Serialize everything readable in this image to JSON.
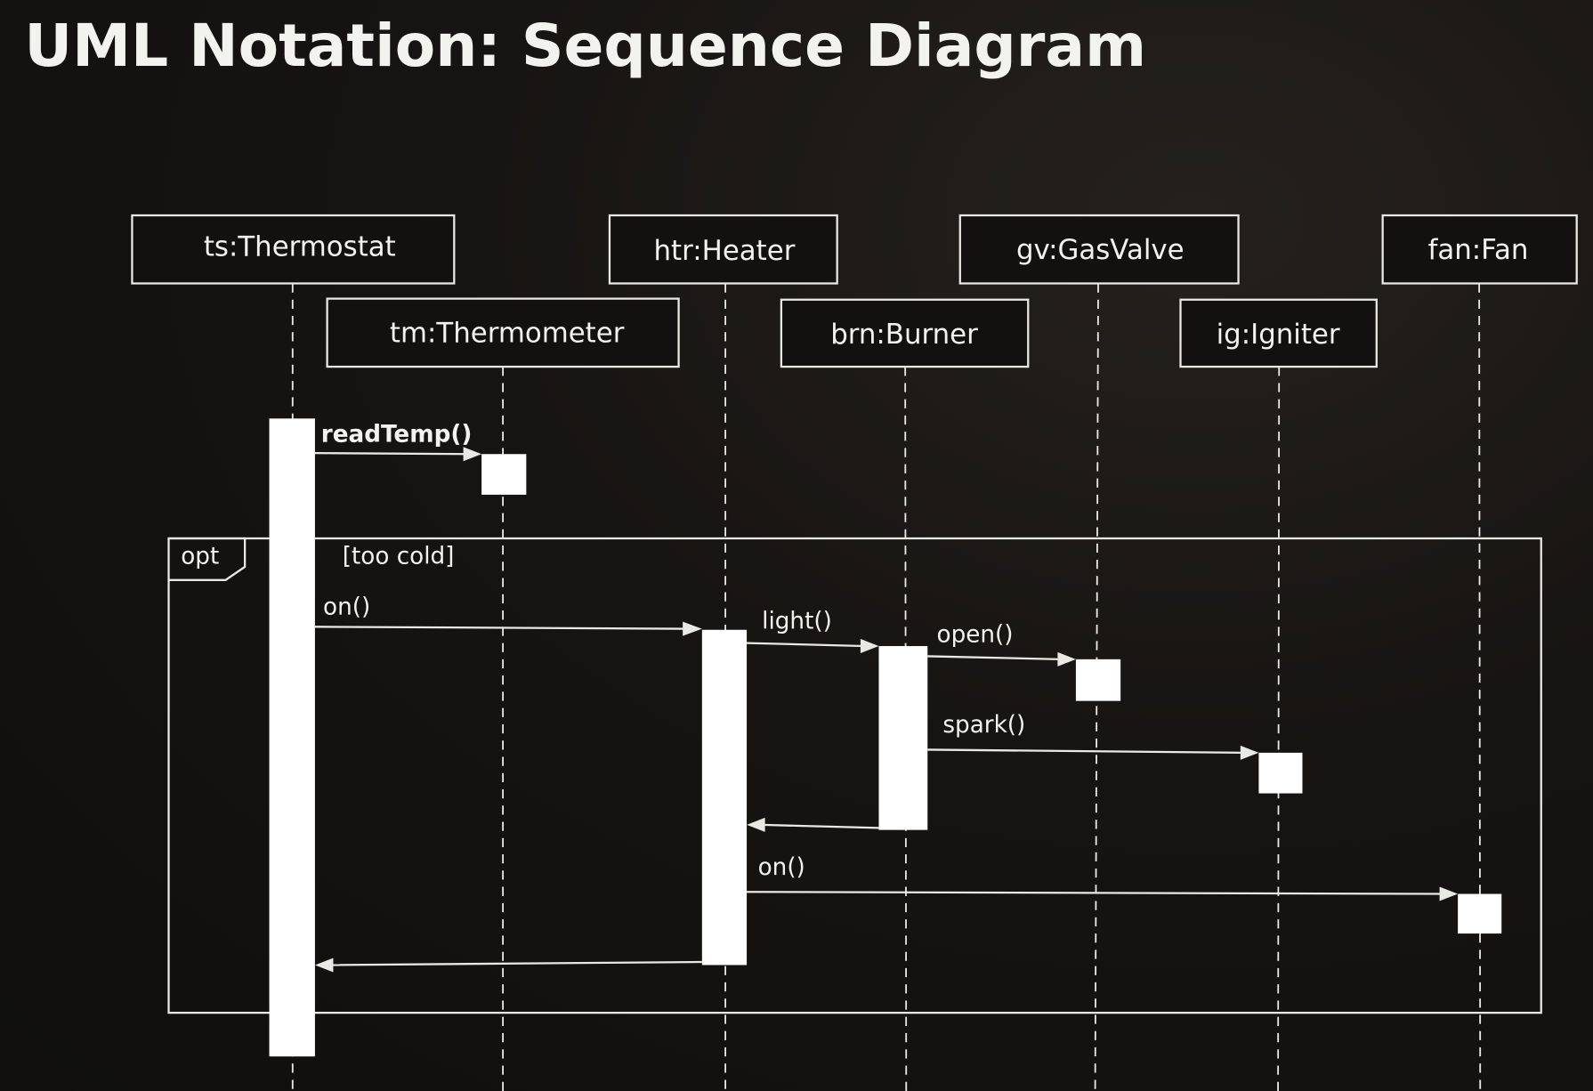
{
  "title": "UML Notation: Sequence Diagram",
  "participants": [
    {
      "id": "ts",
      "label": "ts:Thermostat"
    },
    {
      "id": "tm",
      "label": "tm:Thermometer"
    },
    {
      "id": "htr",
      "label": "htr:Heater"
    },
    {
      "id": "brn",
      "label": "brn:Burner"
    },
    {
      "id": "gv",
      "label": "gv:GasValve"
    },
    {
      "id": "ig",
      "label": "ig:Igniter"
    },
    {
      "id": "fan",
      "label": "fan:Fan"
    }
  ],
  "messages": [
    {
      "from": "ts",
      "to": "tm",
      "label": "readTemp()",
      "type": "call"
    },
    {
      "from": "ts",
      "to": "htr",
      "label": "on()",
      "type": "call"
    },
    {
      "from": "htr",
      "to": "brn",
      "label": "light()",
      "type": "call"
    },
    {
      "from": "brn",
      "to": "gv",
      "label": "open()",
      "type": "call"
    },
    {
      "from": "brn",
      "to": "ig",
      "label": "spark()",
      "type": "call"
    },
    {
      "from": "brn",
      "to": "htr",
      "label": "",
      "type": "return"
    },
    {
      "from": "htr",
      "to": "fan",
      "label": "on()",
      "type": "call"
    },
    {
      "from": "htr",
      "to": "ts",
      "label": "",
      "type": "return"
    }
  ],
  "fragment": {
    "operator": "opt",
    "guard": "[too cold]"
  }
}
